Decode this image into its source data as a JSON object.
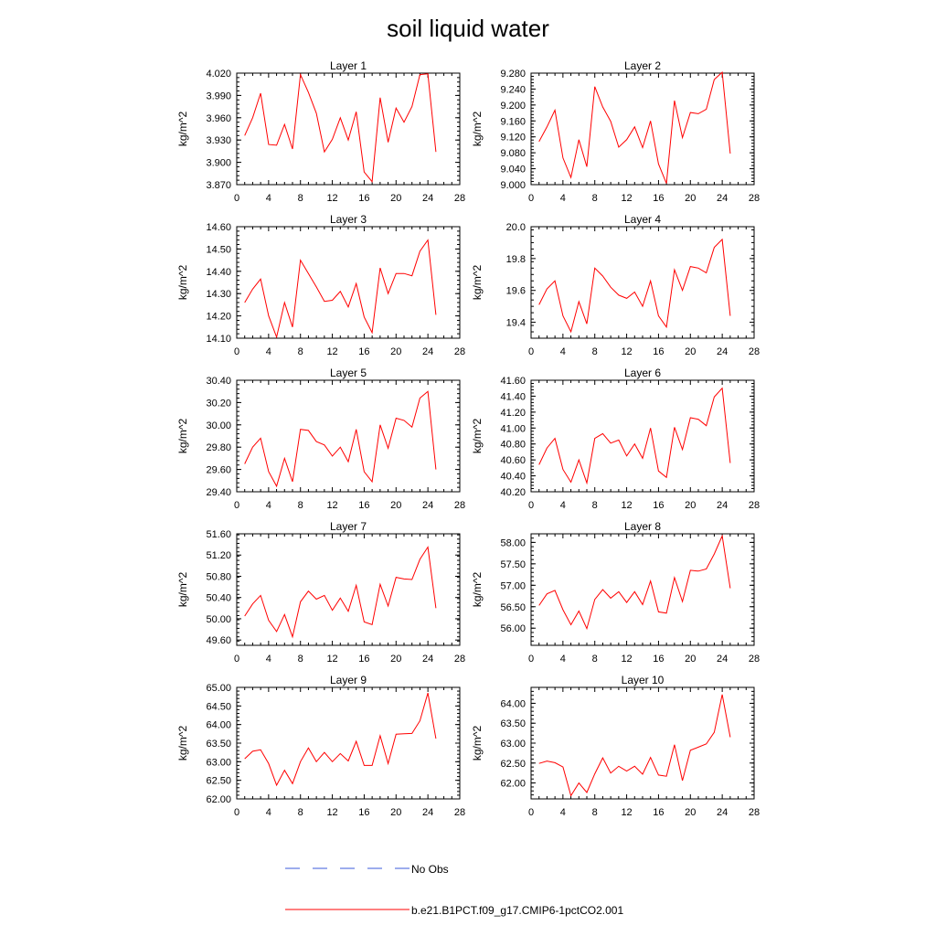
{
  "title": "soil liquid water",
  "legend": {
    "items": [
      {
        "label": "No Obs",
        "color": "#3b5bdb",
        "style": "dashed"
      },
      {
        "label": "b.e21.B1PCT.f09_g17.CMIP6-1pctCO2.001",
        "color": "#ff0000",
        "style": "solid"
      }
    ]
  },
  "colors": {
    "series": "#ff0000",
    "obs": "#3b5bdb"
  },
  "chart_data": [
    {
      "type": "line",
      "title": "Layer 1",
      "xlabel": "",
      "ylabel": "kg/m^2",
      "xlim": [
        0,
        28
      ],
      "ylim": [
        3.87,
        4.02
      ],
      "xticks": [
        "0",
        "4",
        "8",
        "12",
        "16",
        "20",
        "24",
        "28"
      ],
      "yticks": [
        "3.870",
        "3.900",
        "3.930",
        "3.960",
        "3.990",
        "4.020"
      ],
      "x": [
        1,
        2,
        3,
        4,
        5,
        6,
        7,
        8,
        9,
        10,
        11,
        12,
        13,
        14,
        15,
        16,
        17,
        18,
        19,
        20,
        21,
        22,
        23,
        24,
        25
      ],
      "series": [
        {
          "name": "b.e21.B1PCT.f09_g17.CMIP6-1pctCO2.001",
          "values": [
            3.936,
            3.96,
            3.993,
            3.924,
            3.923,
            3.951,
            3.918,
            4.018,
            3.994,
            3.966,
            3.914,
            3.931,
            3.96,
            3.93,
            3.968,
            3.887,
            3.874,
            3.987,
            3.927,
            3.973,
            3.954,
            3.975,
            4.018,
            4.019,
            3.914
          ]
        }
      ]
    },
    {
      "type": "line",
      "title": "Layer 2",
      "xlabel": "",
      "ylabel": "kg/m^2",
      "xlim": [
        0,
        28
      ],
      "ylim": [
        9.0,
        9.28
      ],
      "xticks": [
        "0",
        "4",
        "8",
        "12",
        "16",
        "20",
        "24",
        "28"
      ],
      "yticks": [
        "9.000",
        "9.040",
        "9.080",
        "9.120",
        "9.160",
        "9.200",
        "9.240",
        "9.280"
      ],
      "x": [
        1,
        2,
        3,
        4,
        5,
        6,
        7,
        8,
        9,
        10,
        11,
        12,
        13,
        14,
        15,
        16,
        17,
        18,
        19,
        20,
        21,
        22,
        23,
        24,
        25
      ],
      "series": [
        {
          "name": "b.e21.B1PCT.f09_g17.CMIP6-1pctCO2.001",
          "values": [
            9.108,
            9.145,
            9.187,
            9.067,
            9.018,
            9.113,
            9.045,
            9.246,
            9.195,
            9.159,
            9.094,
            9.113,
            9.145,
            9.093,
            9.16,
            9.052,
            9.003,
            9.211,
            9.118,
            9.181,
            9.178,
            9.189,
            9.264,
            9.282,
            9.078
          ]
        }
      ]
    },
    {
      "type": "line",
      "title": "Layer 3",
      "xlabel": "",
      "ylabel": "kg/m^2",
      "xlim": [
        0,
        28
      ],
      "ylim": [
        14.1,
        14.6
      ],
      "xticks": [
        "0",
        "4",
        "8",
        "12",
        "16",
        "20",
        "24",
        "28"
      ],
      "yticks": [
        "14.10",
        "14.20",
        "14.30",
        "14.40",
        "14.50",
        "14.60"
      ],
      "x": [
        1,
        2,
        3,
        4,
        5,
        6,
        7,
        8,
        9,
        10,
        11,
        12,
        13,
        14,
        15,
        16,
        17,
        18,
        19,
        20,
        21,
        22,
        23,
        24,
        25
      ],
      "series": [
        {
          "name": "b.e21.B1PCT.f09_g17.CMIP6-1pctCO2.001",
          "values": [
            14.26,
            14.32,
            14.365,
            14.2,
            14.105,
            14.26,
            14.15,
            14.45,
            14.39,
            14.33,
            14.265,
            14.27,
            14.31,
            14.24,
            14.345,
            14.195,
            14.125,
            14.415,
            14.3,
            14.39,
            14.39,
            14.38,
            14.49,
            14.54,
            14.205
          ]
        }
      ]
    },
    {
      "type": "line",
      "title": "Layer 4",
      "xlabel": "",
      "ylabel": "kg/m^2",
      "xlim": [
        0,
        28
      ],
      "ylim": [
        19.3,
        20.0
      ],
      "xticks": [
        "0",
        "4",
        "8",
        "12",
        "16",
        "20",
        "24",
        "28"
      ],
      "yticks": [
        "19.4",
        "19.6",
        "19.8",
        "20.0"
      ],
      "x": [
        1,
        2,
        3,
        4,
        5,
        6,
        7,
        8,
        9,
        10,
        11,
        12,
        13,
        14,
        15,
        16,
        17,
        18,
        19,
        20,
        21,
        22,
        23,
        24,
        25
      ],
      "series": [
        {
          "name": "b.e21.B1PCT.f09_g17.CMIP6-1pctCO2.001",
          "values": [
            19.51,
            19.61,
            19.66,
            19.44,
            19.34,
            19.53,
            19.39,
            19.74,
            19.69,
            19.62,
            19.57,
            19.55,
            19.59,
            19.5,
            19.66,
            19.44,
            19.37,
            19.73,
            19.6,
            19.75,
            19.74,
            19.71,
            19.87,
            19.92,
            19.44
          ]
        }
      ]
    },
    {
      "type": "line",
      "title": "Layer 5",
      "xlabel": "",
      "ylabel": "kg/m^2",
      "xlim": [
        0,
        28
      ],
      "ylim": [
        29.4,
        30.4
      ],
      "xticks": [
        "0",
        "4",
        "8",
        "12",
        "16",
        "20",
        "24",
        "28"
      ],
      "yticks": [
        "29.40",
        "29.60",
        "29.80",
        "30.00",
        "30.20",
        "30.40"
      ],
      "x": [
        1,
        2,
        3,
        4,
        5,
        6,
        7,
        8,
        9,
        10,
        11,
        12,
        13,
        14,
        15,
        16,
        17,
        18,
        19,
        20,
        21,
        22,
        23,
        24,
        25
      ],
      "series": [
        {
          "name": "b.e21.B1PCT.f09_g17.CMIP6-1pctCO2.001",
          "values": [
            29.65,
            29.8,
            29.88,
            29.58,
            29.45,
            29.7,
            29.49,
            29.96,
            29.95,
            29.85,
            29.82,
            29.72,
            29.8,
            29.67,
            29.96,
            29.58,
            29.49,
            30.0,
            29.79,
            30.06,
            30.04,
            29.98,
            30.24,
            30.3,
            29.6
          ]
        }
      ]
    },
    {
      "type": "line",
      "title": "Layer 6",
      "xlabel": "",
      "ylabel": "kg/m^2",
      "xlim": [
        0,
        28
      ],
      "ylim": [
        40.2,
        41.6
      ],
      "xticks": [
        "0",
        "4",
        "8",
        "12",
        "16",
        "20",
        "24",
        "28"
      ],
      "yticks": [
        "40.20",
        "40.40",
        "40.60",
        "40.80",
        "41.00",
        "41.20",
        "41.40",
        "41.60"
      ],
      "x": [
        1,
        2,
        3,
        4,
        5,
        6,
        7,
        8,
        9,
        10,
        11,
        12,
        13,
        14,
        15,
        16,
        17,
        18,
        19,
        20,
        21,
        22,
        23,
        24,
        25
      ],
      "series": [
        {
          "name": "b.e21.B1PCT.f09_g17.CMIP6-1pctCO2.001",
          "values": [
            40.54,
            40.75,
            40.87,
            40.48,
            40.32,
            40.6,
            40.31,
            40.87,
            40.93,
            40.81,
            40.85,
            40.65,
            40.8,
            40.62,
            41.0,
            40.46,
            40.38,
            41.01,
            40.73,
            41.13,
            41.11,
            41.03,
            41.39,
            41.5,
            40.56
          ]
        }
      ]
    },
    {
      "type": "line",
      "title": "Layer 7",
      "xlabel": "",
      "ylabel": "kg/m^2",
      "xlim": [
        0,
        28
      ],
      "ylim": [
        49.5,
        51.6
      ],
      "xticks": [
        "0",
        "4",
        "8",
        "12",
        "16",
        "20",
        "24",
        "28"
      ],
      "yticks": [
        "49.60",
        "50.00",
        "50.40",
        "50.80",
        "51.20",
        "51.60"
      ],
      "x": [
        1,
        2,
        3,
        4,
        5,
        6,
        7,
        8,
        9,
        10,
        11,
        12,
        13,
        14,
        15,
        16,
        17,
        18,
        19,
        20,
        21,
        22,
        23,
        24,
        25
      ],
      "series": [
        {
          "name": "b.e21.B1PCT.f09_g17.CMIP6-1pctCO2.001",
          "values": [
            50.05,
            50.28,
            50.44,
            49.97,
            49.76,
            50.08,
            49.66,
            50.32,
            50.52,
            50.37,
            50.44,
            50.16,
            50.39,
            50.14,
            50.63,
            49.94,
            49.89,
            50.65,
            50.24,
            50.78,
            50.75,
            50.74,
            51.12,
            51.35,
            50.2
          ]
        }
      ]
    },
    {
      "type": "line",
      "title": "Layer 8",
      "xlabel": "",
      "ylabel": "kg/m^2",
      "xlim": [
        0,
        28
      ],
      "ylim": [
        55.6,
        58.2
      ],
      "xticks": [
        "0",
        "4",
        "8",
        "12",
        "16",
        "20",
        "24",
        "28"
      ],
      "yticks": [
        "56.00",
        "56.50",
        "57.00",
        "57.50",
        "58.00"
      ],
      "x": [
        1,
        2,
        3,
        4,
        5,
        6,
        7,
        8,
        9,
        10,
        11,
        12,
        13,
        14,
        15,
        16,
        17,
        18,
        19,
        20,
        21,
        22,
        23,
        24,
        25
      ],
      "series": [
        {
          "name": "b.e21.B1PCT.f09_g17.CMIP6-1pctCO2.001",
          "values": [
            56.53,
            56.8,
            56.88,
            56.43,
            56.08,
            56.4,
            55.99,
            56.67,
            56.9,
            56.7,
            56.85,
            56.6,
            56.85,
            56.55,
            57.1,
            56.38,
            56.35,
            57.18,
            56.62,
            57.35,
            57.33,
            57.38,
            57.73,
            58.15,
            56.93
          ]
        }
      ]
    },
    {
      "type": "line",
      "title": "Layer 9",
      "xlabel": "",
      "ylabel": "kg/m^2",
      "xlim": [
        0,
        28
      ],
      "ylim": [
        62.0,
        65.0
      ],
      "xticks": [
        "0",
        "4",
        "8",
        "12",
        "16",
        "20",
        "24",
        "28"
      ],
      "yticks": [
        "62.00",
        "62.50",
        "63.00",
        "63.50",
        "64.00",
        "64.50",
        "65.00"
      ],
      "x": [
        1,
        2,
        3,
        4,
        5,
        6,
        7,
        8,
        9,
        10,
        11,
        12,
        13,
        14,
        15,
        16,
        17,
        18,
        19,
        20,
        21,
        22,
        23,
        24,
        25
      ],
      "series": [
        {
          "name": "b.e21.B1PCT.f09_g17.CMIP6-1pctCO2.001",
          "values": [
            63.08,
            63.28,
            63.32,
            62.95,
            62.37,
            62.77,
            62.41,
            63.0,
            63.37,
            63.0,
            63.25,
            63.0,
            63.22,
            63.02,
            63.55,
            62.9,
            62.9,
            63.7,
            62.95,
            63.74,
            63.75,
            63.76,
            64.1,
            64.85,
            63.62
          ]
        }
      ]
    },
    {
      "type": "line",
      "title": "Layer 10",
      "xlabel": "",
      "ylabel": "kg/m^2",
      "xlim": [
        0,
        28
      ],
      "ylim": [
        61.6,
        64.4
      ],
      "xticks": [
        "0",
        "4",
        "8",
        "12",
        "16",
        "20",
        "24",
        "28"
      ],
      "yticks": [
        "62.00",
        "62.50",
        "63.00",
        "63.50",
        "64.00"
      ],
      "x": [
        1,
        2,
        3,
        4,
        5,
        6,
        7,
        8,
        9,
        10,
        11,
        12,
        13,
        14,
        15,
        16,
        17,
        18,
        19,
        20,
        21,
        22,
        23,
        24,
        25
      ],
      "series": [
        {
          "name": "b.e21.B1PCT.f09_g17.CMIP6-1pctCO2.001",
          "values": [
            62.49,
            62.55,
            62.51,
            62.4,
            61.68,
            62.0,
            61.76,
            62.23,
            62.63,
            62.25,
            62.42,
            62.3,
            62.42,
            62.22,
            62.64,
            62.2,
            62.17,
            62.96,
            62.06,
            62.82,
            62.9,
            62.98,
            63.27,
            64.22,
            63.15
          ]
        }
      ]
    }
  ]
}
